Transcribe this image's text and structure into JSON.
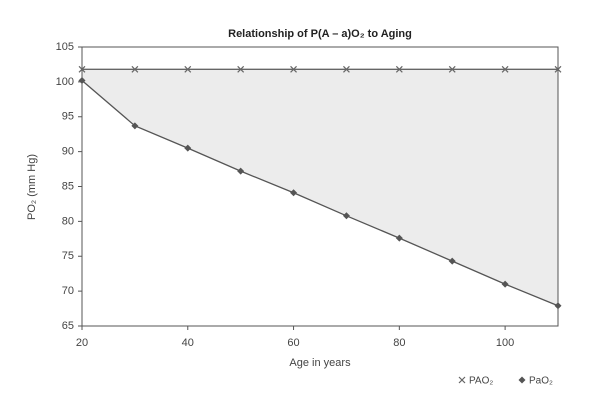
{
  "chart_data": {
    "type": "line",
    "title": "Relationship of P(A – a)O₂ to Aging",
    "xlabel": "Age in years",
    "ylabel": "PO₂ (mm Hg)",
    "x": [
      20,
      30,
      40,
      50,
      60,
      70,
      80,
      90,
      100,
      110
    ],
    "series": [
      {
        "name": "PAO₂",
        "color": "#666666",
        "marker": "x",
        "values": [
          101.8,
          101.8,
          101.8,
          101.8,
          101.8,
          101.8,
          101.8,
          101.8,
          101.8,
          101.8
        ]
      },
      {
        "name": "PaO₂",
        "color": "#555555",
        "marker": "diamond",
        "values": [
          100.2,
          93.7,
          90.5,
          87.2,
          84.1,
          80.8,
          77.6,
          74.3,
          71.0,
          67.9
        ]
      }
    ],
    "fill_between": true,
    "xlim": [
      20,
      110
    ],
    "xticks": [
      20,
      40,
      60,
      80,
      100
    ],
    "ylim": [
      65,
      105
    ],
    "yticks": [
      65,
      70,
      75,
      80,
      85,
      90,
      95,
      100,
      105
    ],
    "legend": "bottom-right"
  }
}
